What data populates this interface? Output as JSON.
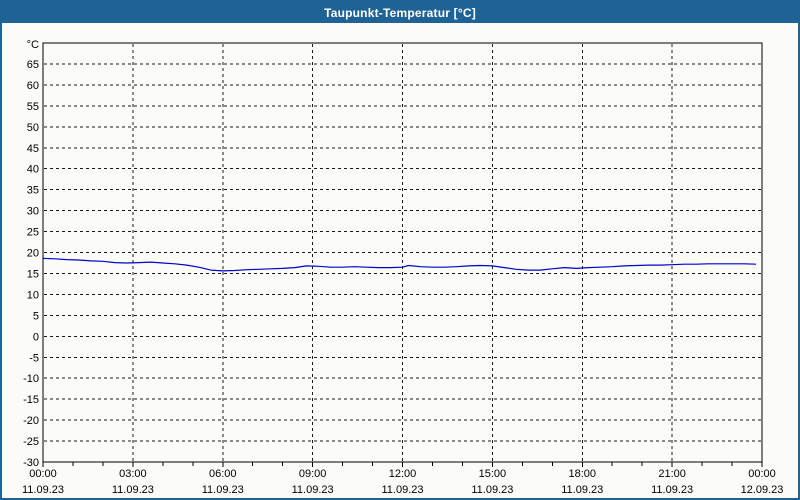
{
  "window": {
    "title": "Taupunkt-Temperatur [°C]"
  },
  "colors": {
    "titlebar_bg": "#1f6396",
    "frame_border": "#1f6396",
    "plot_background": "#fbfcf7",
    "grid_line": "#1a1a1a",
    "axis_line": "#000000",
    "series_line": "#0000cd",
    "title_text": "#ffffff",
    "label_text": "#000000"
  },
  "chart_data": {
    "type": "line",
    "title": "Taupunkt-Temperatur [°C]",
    "y_unit_label": "°C",
    "ylim": [
      -30,
      70
    ],
    "y_tick_min": -30,
    "y_tick_max": 65,
    "y_tick_step": 5,
    "x_hours_total": 24,
    "x_label_step_hours": 3,
    "grid": true,
    "grid_style": "dashed",
    "legend_position": "none",
    "x_tick_labels": [
      {
        "time": "00:00",
        "date": "11.09.23"
      },
      {
        "time": "03:00",
        "date": "11.09.23"
      },
      {
        "time": "06:00",
        "date": "11.09.23"
      },
      {
        "time": "09:00",
        "date": "11.09.23"
      },
      {
        "time": "12:00",
        "date": "11.09.23"
      },
      {
        "time": "15:00",
        "date": "11.09.23"
      },
      {
        "time": "18:00",
        "date": "11.09.23"
      },
      {
        "time": "21:00",
        "date": "11.09.23"
      },
      {
        "time": "00:00",
        "date": "12.09.23"
      }
    ],
    "series": [
      {
        "name": "Taupunkt-Temperatur",
        "color": "#0000cd",
        "x_hours": [
          0,
          0.4,
          0.8,
          1.2,
          1.6,
          2.0,
          2.4,
          2.8,
          3.2,
          3.6,
          4.0,
          4.4,
          4.8,
          5.2,
          5.6,
          6.0,
          6.4,
          6.8,
          7.2,
          7.6,
          8.0,
          8.4,
          8.8,
          9.2,
          9.6,
          10.0,
          10.4,
          10.8,
          11.2,
          11.6,
          12.0,
          12.2,
          12.6,
          13.0,
          13.4,
          13.8,
          14.2,
          14.6,
          15.0,
          15.4,
          15.8,
          16.2,
          16.6,
          17.0,
          17.4,
          17.8,
          18.2,
          18.6,
          19.0,
          19.4,
          19.8,
          20.2,
          20.6,
          21.0,
          21.4,
          21.8,
          22.2,
          22.6,
          23.0,
          23.4,
          23.8
        ],
        "values": [
          18.6,
          18.5,
          18.3,
          18.2,
          18.0,
          17.9,
          17.6,
          17.5,
          17.6,
          17.7,
          17.5,
          17.3,
          17.0,
          16.5,
          15.8,
          15.6,
          15.7,
          15.9,
          16.0,
          16.1,
          16.2,
          16.4,
          16.8,
          16.7,
          16.5,
          16.5,
          16.6,
          16.5,
          16.4,
          16.4,
          16.5,
          16.9,
          16.6,
          16.5,
          16.5,
          16.6,
          16.8,
          16.9,
          16.8,
          16.4,
          16.0,
          15.8,
          15.8,
          16.1,
          16.4,
          16.2,
          16.4,
          16.5,
          16.6,
          16.8,
          16.9,
          17.0,
          17.0,
          17.1,
          17.2,
          17.2,
          17.3,
          17.3,
          17.3,
          17.3,
          17.2
        ]
      }
    ]
  }
}
